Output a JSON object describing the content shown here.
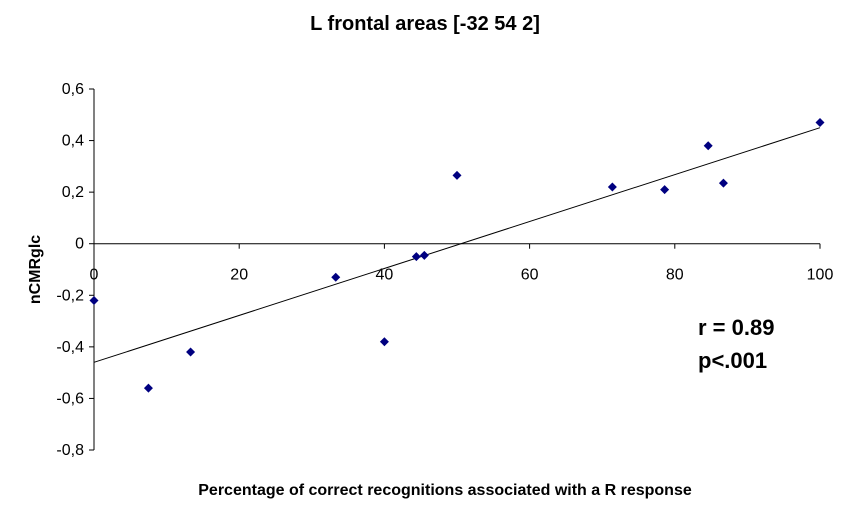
{
  "chart_data": {
    "type": "scatter",
    "title": "L frontal areas [-32 54 2]",
    "xlabel": "Percentage of correct recognitions associated with a R response",
    "ylabel": "nCMRglc",
    "xlim": [
      0,
      100
    ],
    "ylim": [
      -0.8,
      0.6
    ],
    "x_ticks": [
      0,
      20,
      40,
      60,
      80,
      100
    ],
    "x_tick_labels": [
      "0",
      "20",
      "40",
      "60",
      "80",
      "100"
    ],
    "y_ticks": [
      0.6,
      0.4,
      0.2,
      0,
      -0.2,
      -0.4,
      -0.6,
      -0.8
    ],
    "y_tick_labels": [
      "0,6",
      "0,4",
      "0,2",
      "0",
      "-0,2",
      "-0,4",
      "-0,6",
      "-0,8"
    ],
    "grid": false,
    "legend": "none",
    "marker_color": "#000080",
    "points": [
      {
        "x": 0,
        "y": -0.22
      },
      {
        "x": 7.5,
        "y": -0.56
      },
      {
        "x": 13.3,
        "y": -0.42
      },
      {
        "x": 33.3,
        "y": -0.13
      },
      {
        "x": 40,
        "y": -0.38
      },
      {
        "x": 44.4,
        "y": -0.05
      },
      {
        "x": 45.5,
        "y": -0.045
      },
      {
        "x": 50,
        "y": 0.265
      },
      {
        "x": 71.4,
        "y": 0.22
      },
      {
        "x": 78.6,
        "y": 0.21
      },
      {
        "x": 84.6,
        "y": 0.38
      },
      {
        "x": 86.7,
        "y": 0.235
      },
      {
        "x": 100,
        "y": 0.47
      }
    ],
    "trendline": {
      "x": [
        0,
        100
      ],
      "y": [
        -0.46,
        0.45
      ]
    },
    "annotations": [
      "r = 0.89",
      "p<.001"
    ]
  }
}
